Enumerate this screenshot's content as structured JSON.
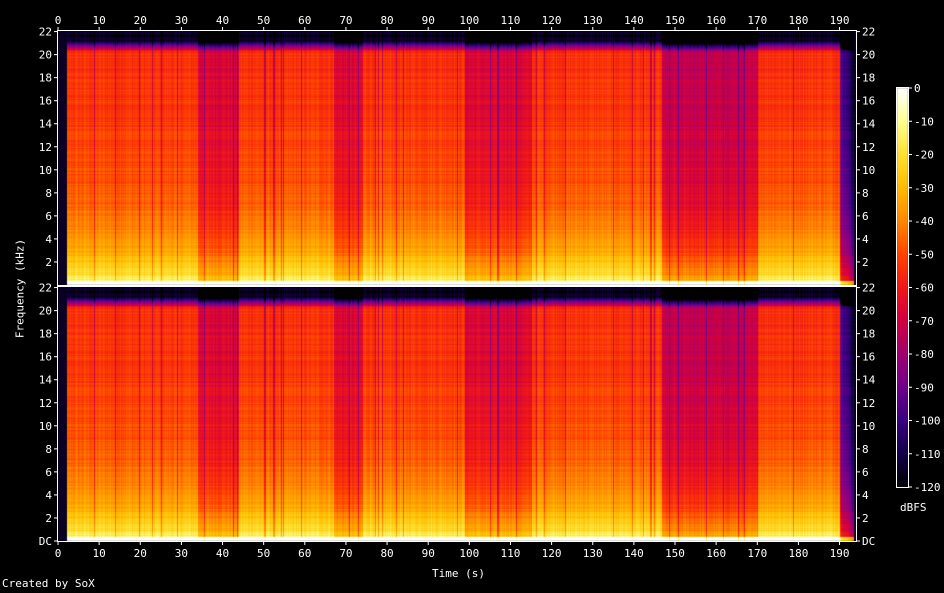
{
  "chart_data": {
    "type": "heatmap",
    "title": "",
    "xlabel": "Time (s)",
    "ylabel": "Frequency (kHz)",
    "credit": "Created by SoX",
    "xlim": [
      0,
      194
    ],
    "ylim": [
      0,
      22.05
    ],
    "x_ticks": [
      "0",
      "10",
      "20",
      "30",
      "40",
      "50",
      "60",
      "70",
      "80",
      "90",
      "100",
      "110",
      "120",
      "130",
      "140",
      "150",
      "160",
      "170",
      "180",
      "190"
    ],
    "y_ticks_channel_1": [
      "22",
      "20",
      "18",
      "16",
      "14",
      "12",
      "10",
      "8",
      "6",
      "4",
      "2"
    ],
    "y_ticks_channel_2": [
      "22",
      "20",
      "18",
      "16",
      "14",
      "12",
      "10",
      "8",
      "6",
      "4",
      "2",
      "DC"
    ],
    "colorbar": {
      "label": "dBFS",
      "range": [
        -120,
        0
      ],
      "ticks": [
        "0",
        "-10",
        "-20",
        "-30",
        "-40",
        "-50",
        "-60",
        "-70",
        "-80",
        "-90",
        "-100",
        "-110",
        "-120"
      ],
      "colors": [
        "#000000",
        "#140048",
        "#3a0080",
        "#70008a",
        "#a00070",
        "#d00040",
        "#f01818",
        "#ff4400",
        "#ff8800",
        "#ffbb00",
        "#ffe030",
        "#ffff90",
        "#ffffff"
      ]
    },
    "channels": 2,
    "duration_s": 193.5,
    "segments": [
      {
        "start": 0,
        "end": 2,
        "level": "silence"
      },
      {
        "start": 2,
        "end": 19,
        "level": "loud"
      },
      {
        "start": 19,
        "end": 34,
        "level": "loud"
      },
      {
        "start": 34,
        "end": 44,
        "level": "moderate"
      },
      {
        "start": 44,
        "end": 67,
        "level": "loud"
      },
      {
        "start": 67,
        "end": 74,
        "level": "moderate"
      },
      {
        "start": 74,
        "end": 99,
        "level": "loud"
      },
      {
        "start": 99,
        "end": 115,
        "level": "moderate"
      },
      {
        "start": 115,
        "end": 147,
        "level": "loud"
      },
      {
        "start": 147,
        "end": 163,
        "level": "quiet"
      },
      {
        "start": 163,
        "end": 170,
        "level": "quiet"
      },
      {
        "start": 170,
        "end": 190,
        "level": "loud"
      },
      {
        "start": 190,
        "end": 193.5,
        "level": "fade"
      }
    ]
  }
}
